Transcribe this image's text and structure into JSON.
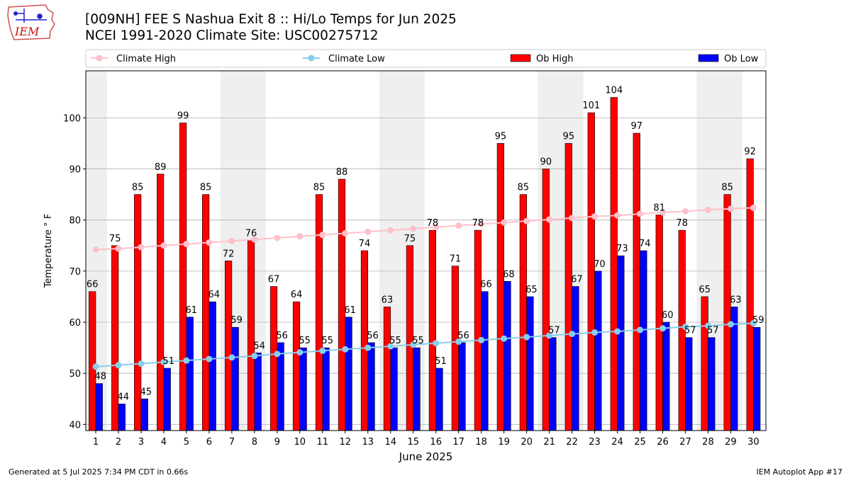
{
  "header": {
    "logo_text": "IEM",
    "title_line1": "[009NH] FEE S Nashua Exit 8 :: Hi/Lo Temps for Jun 2025",
    "title_line2": "NCEI 1991-2020 Climate Site: USC00275712"
  },
  "footer": {
    "left": "Generated at 5 Jul 2025 7:34 PM CDT in 0.66s",
    "right": "IEM Autoplot App #17"
  },
  "colors": {
    "ob_high": "#ff0000",
    "ob_low": "#0000ff",
    "climate_high": "#ffc0cb",
    "climate_low": "#87ceeb",
    "weekend_shade": "#efefef",
    "grid": "#b0b0b0"
  },
  "chart_data": {
    "type": "bar",
    "xlabel": "June 2025",
    "ylabel": "Temperature ° F",
    "ylim": [
      38.8,
      109.2
    ],
    "yticks": [
      40,
      50,
      60,
      70,
      80,
      90,
      100
    ],
    "grid": "horizontal",
    "legend_position": "top",
    "categories": [
      "1",
      "2",
      "3",
      "4",
      "5",
      "6",
      "7",
      "8",
      "9",
      "10",
      "11",
      "12",
      "13",
      "14",
      "15",
      "16",
      "17",
      "18",
      "19",
      "20",
      "21",
      "22",
      "23",
      "24",
      "25",
      "26",
      "27",
      "28",
      "29",
      "30"
    ],
    "weekend_days": [
      1,
      7,
      8,
      14,
      15,
      21,
      22,
      28,
      29
    ],
    "series": [
      {
        "name": "Ob High",
        "kind": "bar",
        "color": "#ff0000",
        "values": [
          66,
          75,
          85,
          89,
          99,
          85,
          72,
          76,
          67,
          64,
          85,
          88,
          74,
          63,
          75,
          78,
          71,
          78,
          95,
          85,
          90,
          95,
          101,
          104,
          97,
          81,
          78,
          65,
          85,
          92
        ],
        "labels": [
          "66",
          "75",
          "85",
          "89",
          "99",
          "85",
          "72",
          "76",
          "67",
          "64",
          "85",
          "88",
          "74",
          "63",
          "75",
          "78",
          "71",
          "78",
          "95",
          "85",
          "90",
          "95",
          "101",
          "104",
          "97",
          "81",
          "78",
          "65",
          "85",
          "92"
        ]
      },
      {
        "name": "Ob Low",
        "kind": "bar",
        "color": "#0000ff",
        "values": [
          48,
          44,
          45,
          51,
          61,
          64,
          59,
          54,
          56,
          55,
          55,
          61,
          56,
          55,
          55,
          51,
          56,
          66,
          68,
          65,
          57,
          67,
          70,
          73,
          74,
          60,
          57,
          57,
          63,
          59
        ],
        "labels": [
          "48",
          "44",
          "45",
          "51",
          "61",
          "64",
          "59",
          "54",
          "56",
          "55",
          "55",
          "61",
          "56",
          "55",
          "55",
          "51",
          "56",
          "66",
          "68",
          "65",
          "57",
          "67",
          "70",
          "73",
          "74",
          "60",
          "57",
          "57",
          "63",
          "59"
        ]
      },
      {
        "name": "Climate High",
        "kind": "line",
        "color": "#ffc0cb",
        "values": [
          74.2,
          74.4,
          74.7,
          75.0,
          75.3,
          75.6,
          75.9,
          76.2,
          76.5,
          76.8,
          77.1,
          77.4,
          77.7,
          78.0,
          78.3,
          78.6,
          78.9,
          79.2,
          79.5,
          79.8,
          80.1,
          80.4,
          80.7,
          80.9,
          81.2,
          81.5,
          81.7,
          82.0,
          82.2,
          82.4
        ]
      },
      {
        "name": "Climate Low",
        "kind": "line",
        "color": "#87ceeb",
        "values": [
          51.3,
          51.6,
          51.9,
          52.2,
          52.5,
          52.8,
          53.1,
          53.4,
          53.8,
          54.1,
          54.4,
          54.7,
          55.0,
          55.3,
          55.6,
          55.9,
          56.2,
          56.5,
          56.8,
          57.1,
          57.4,
          57.7,
          58.0,
          58.2,
          58.5,
          58.8,
          59.1,
          59.3,
          59.6,
          59.8
        ]
      }
    ]
  }
}
